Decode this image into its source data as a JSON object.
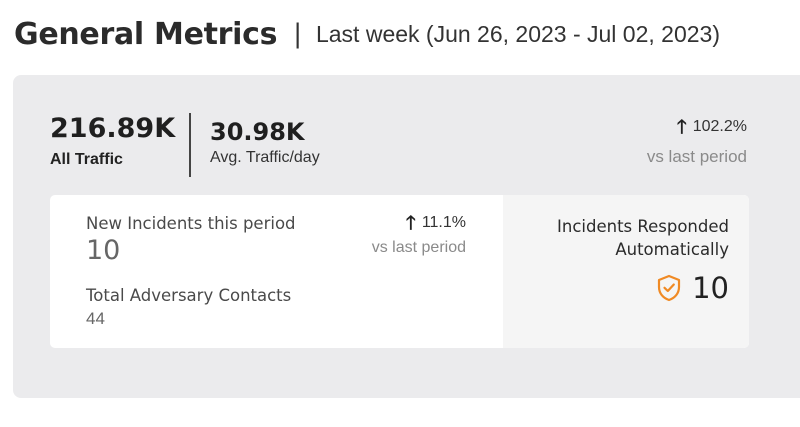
{
  "header": {
    "title": "General Metrics",
    "separator": "|",
    "range": "Last week (Jun 26, 2023 - Jul 02, 2023)"
  },
  "traffic": {
    "all_value": "216.89K",
    "all_label": "All Traffic",
    "avg_value": "30.98K",
    "avg_label": "Avg. Traffic/day",
    "trend_arrow": "🡑",
    "trend_pct": "102.2%",
    "trend_label": "vs last period"
  },
  "incidents": {
    "new_label": "New Incidents this period",
    "new_value": "10",
    "trend_arrow": "🡑",
    "trend_pct": "11.1%",
    "trend_label": "vs last period",
    "adversary_label": "Total Adversary Contacts",
    "adversary_value": "44"
  },
  "responded": {
    "label_line1": "Incidents Responded",
    "label_line2": "Automatically",
    "icon": "shield-check-icon",
    "value": "10"
  },
  "colors": {
    "panel_bg": "#ebebed",
    "shield_accent": "#f08a24"
  }
}
